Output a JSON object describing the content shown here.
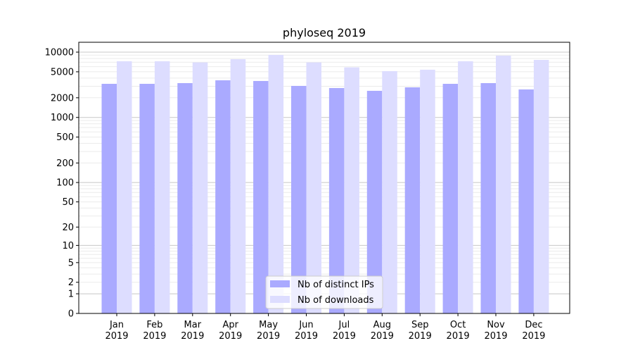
{
  "chart_data": {
    "type": "bar",
    "title": "phyloseq 2019",
    "xlabel": "",
    "ylabel": "",
    "yscale": "log10(1+y)",
    "ylim": [
      0,
      13500
    ],
    "grid": true,
    "categories": [
      "Jan\n2019",
      "Feb\n2019",
      "Mar\n2019",
      "Apr\n2019",
      "May\n2019",
      "Jun\n2019",
      "Jul\n2019",
      "Aug\n2019",
      "Sep\n2019",
      "Oct\n2019",
      "Nov\n2019",
      "Dec\n2019"
    ],
    "yticks": [
      0,
      1,
      2,
      5,
      10,
      20,
      50,
      100,
      200,
      500,
      1000,
      2000,
      5000,
      10000
    ],
    "series": [
      {
        "name": "Nb of distinct IPs",
        "color": "#aaaaff",
        "values": [
          3270,
          3270,
          3355,
          3705,
          3615,
          3040,
          2820,
          2555,
          2890,
          3270,
          3355,
          2685
        ]
      },
      {
        "name": "Nb of downloads",
        "color": "#ddddff",
        "values": [
          7240,
          7240,
          6950,
          7800,
          9060,
          6950,
          5840,
          5120,
          5380,
          7240,
          8840,
          7610
        ]
      }
    ],
    "legend_position": "bottom-center"
  }
}
